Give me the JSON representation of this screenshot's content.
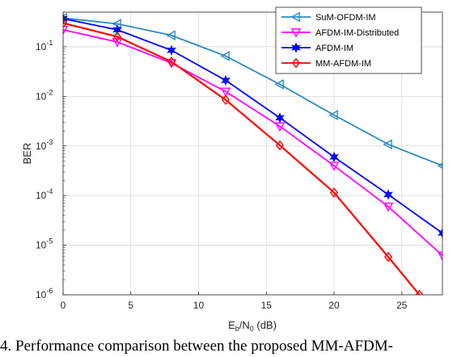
{
  "chart_data": {
    "type": "line",
    "title": "",
    "xlabel": {
      "main": "E",
      "sub_b": "b",
      "mid": "/N",
      "sub_0": "0",
      "unit": " (dB)"
    },
    "ylabel": "BER",
    "xlim": [
      0,
      28
    ],
    "ylim": [
      1e-06,
      0.5
    ],
    "yscale": "log",
    "grid": true,
    "legend_position": "top-right",
    "xticks": [
      "0",
      "5",
      "10",
      "15",
      "20",
      "25"
    ],
    "xtick_values": [
      0,
      5,
      10,
      15,
      20,
      25
    ],
    "yticks": [
      {
        "value": 1e-06,
        "base": "10",
        "exp": "-6"
      },
      {
        "value": 1e-05,
        "base": "10",
        "exp": "-5"
      },
      {
        "value": 0.0001,
        "base": "10",
        "exp": "-4"
      },
      {
        "value": 0.001,
        "base": "10",
        "exp": "-3"
      },
      {
        "value": 0.01,
        "base": "10",
        "exp": "-2"
      },
      {
        "value": 0.1,
        "base": "10",
        "exp": "-1"
      }
    ],
    "x": [
      0,
      4,
      8,
      12,
      16,
      20,
      24,
      28
    ],
    "series": [
      {
        "name": "SuM-OFDM-IM",
        "color": "#2e8bc0",
        "marker": "triangle-left",
        "values": [
          0.38,
          0.29,
          0.17,
          0.065,
          0.0175,
          0.0042,
          0.00108,
          0.0004
        ]
      },
      {
        "name": "AFDM-IM-Distributed",
        "color": "#ff00ff",
        "marker": "triangle-down",
        "values": [
          0.22,
          0.125,
          0.047,
          0.0125,
          0.0025,
          0.0004,
          6e-05,
          6.2e-06
        ]
      },
      {
        "name": "AFDM-IM",
        "color": "#0000ff",
        "marker": "hexagram",
        "values": [
          0.37,
          0.22,
          0.085,
          0.021,
          0.0037,
          0.0006,
          0.000105,
          1.75e-05
        ]
      },
      {
        "name": "MM-AFDM-IM",
        "color": "#ff0000",
        "marker": "diamond",
        "x_override": [
          0,
          4,
          8,
          12,
          16,
          20,
          24,
          26.3
        ],
        "values": [
          0.3,
          0.16,
          0.05,
          0.0085,
          0.00103,
          0.000115,
          5.8e-06,
          1e-06
        ]
      }
    ]
  },
  "caption": "4.  Performance comparison between the proposed MM-AFDM-"
}
